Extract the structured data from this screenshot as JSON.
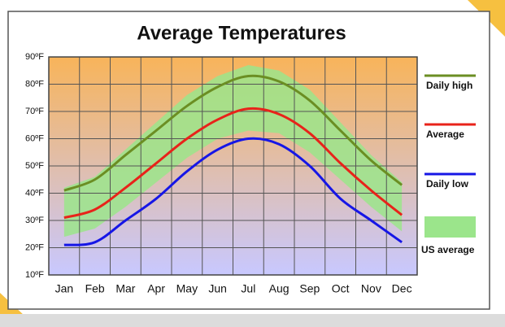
{
  "chart_data": {
    "type": "line",
    "title": "Average Temperatures",
    "categories": [
      "Jan",
      "Feb",
      "Mar",
      "Apr",
      "May",
      "Jun",
      "Jul",
      "Aug",
      "Sep",
      "Oct",
      "Nov",
      "Dec"
    ],
    "ylim": [
      10,
      90
    ],
    "yticks": [
      {
        "value": 10,
        "label": "10ºF"
      },
      {
        "value": 20,
        "label": "20ºF"
      },
      {
        "value": 30,
        "label": "30ºF"
      },
      {
        "value": 40,
        "label": "40ºF"
      },
      {
        "value": 50,
        "label": "50ºF"
      },
      {
        "value": 60,
        "label": "60ºF"
      },
      {
        "value": 70,
        "label": "70ºF"
      },
      {
        "value": 80,
        "label": "80ºF"
      },
      {
        "value": 90,
        "label": "90ºF"
      }
    ],
    "grid": true,
    "band": {
      "name": "US average",
      "color": "#9be58b",
      "high": [
        42,
        46,
        56,
        66,
        76,
        83,
        87,
        85,
        78,
        66,
        54,
        44
      ],
      "low": [
        24,
        27,
        35,
        44,
        53,
        60,
        63,
        62,
        55,
        45,
        35,
        26
      ]
    },
    "series": [
      {
        "name": "Daily high",
        "color": "#6b8e23",
        "values": [
          41,
          45,
          54,
          63,
          72,
          79,
          83,
          81,
          74,
          63,
          52,
          43
        ]
      },
      {
        "name": "Average",
        "color": "#e8231a",
        "values": [
          31,
          34,
          42,
          51,
          60,
          67,
          71,
          69,
          62,
          51,
          41,
          32
        ]
      },
      {
        "name": "Daily low",
        "color": "#1616e6",
        "values": [
          21,
          22,
          30,
          38,
          48,
          56,
          60,
          58,
          50,
          38,
          30,
          22
        ]
      }
    ]
  }
}
